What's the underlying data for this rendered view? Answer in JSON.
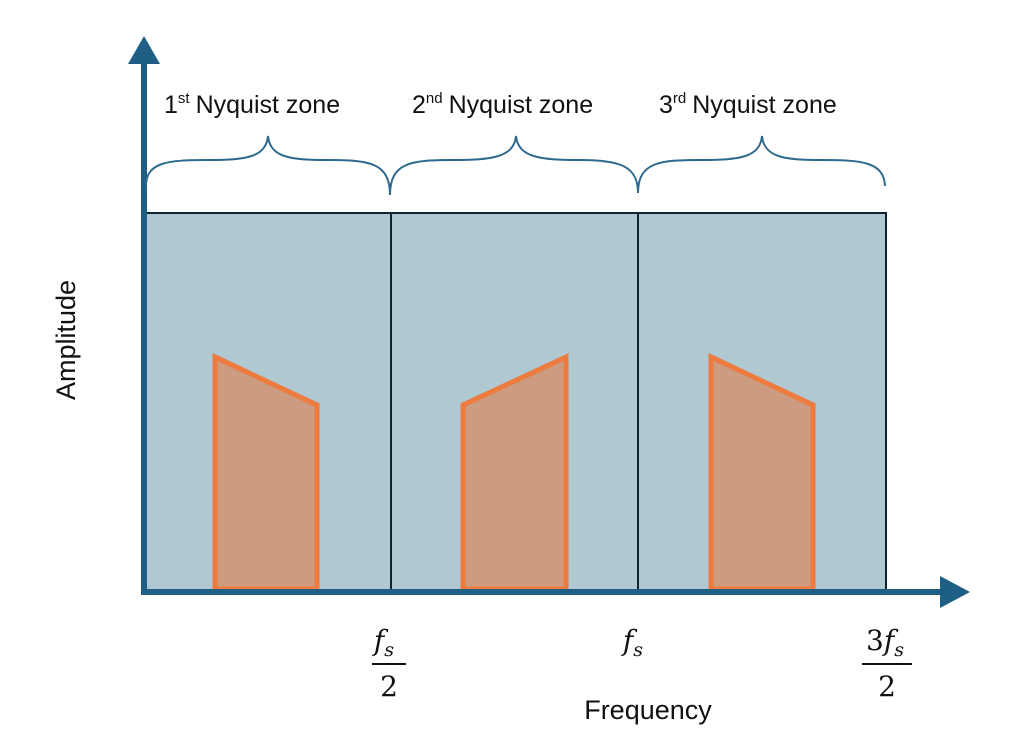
{
  "zones": [
    {
      "number": "1",
      "suffix": "st",
      "text": "Nyquist zone"
    },
    {
      "number": "2",
      "suffix": "nd",
      "text": "Nyquist zone"
    },
    {
      "number": "3",
      "suffix": "rd",
      "text": "Nyquist zone"
    }
  ],
  "axes": {
    "y_label": "Amplitude",
    "x_label": "Frequency"
  },
  "ticks": [
    {
      "coef": "",
      "sym": "f",
      "sub": "s",
      "den": "2"
    },
    {
      "coef": "",
      "sym": "f",
      "sub": "s",
      "den": ""
    },
    {
      "coef": "3",
      "sym": "f",
      "sub": "s",
      "den": "2"
    }
  ],
  "colors": {
    "axis": "#1f5f85",
    "zone_fill": "#afc8d2",
    "zone_border": "#0f2233",
    "brace": "#2e6a8e",
    "spectrum_fill": "#cd9c80",
    "spectrum_stroke": "#ec7b3d"
  },
  "spectra_orientation": [
    "falling",
    "rising",
    "falling"
  ]
}
